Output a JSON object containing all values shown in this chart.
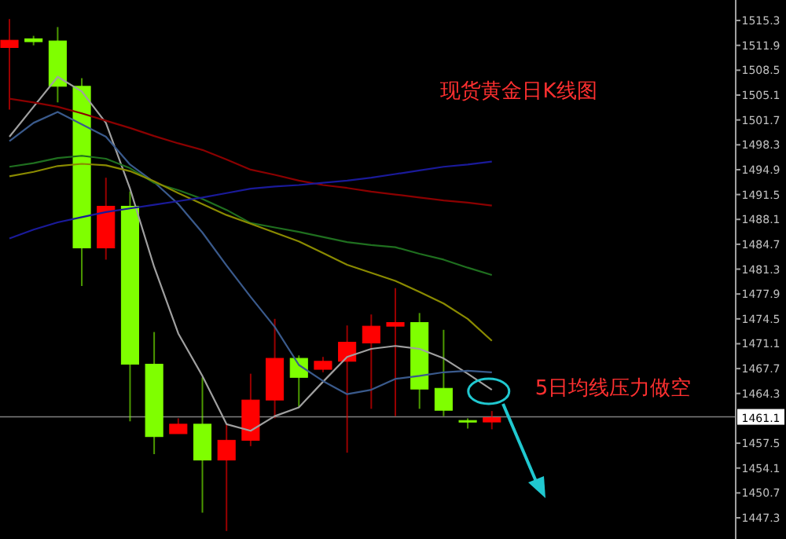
{
  "chart_data": {
    "type": "candlestick",
    "title": "现货黄金日K线图",
    "annotations": [
      "5日均线压力做空"
    ],
    "categories": [
      null,
      null,
      null,
      null,
      null,
      null,
      null,
      null,
      null,
      null,
      null,
      null,
      null,
      null,
      null,
      null,
      null,
      null,
      null,
      null,
      null
    ],
    "ohlc": [
      [
        1511.6,
        1515.5,
        1503.1,
        1512.6
      ],
      [
        1512.8,
        1513.2,
        1511.9,
        1512.4
      ],
      [
        1512.5,
        1514.4,
        1504.1,
        1506.3
      ],
      [
        1506.3,
        1507.4,
        1479.0,
        1484.2
      ],
      [
        1484.2,
        1493.8,
        1482.6,
        1489.9
      ],
      [
        1489.9,
        1491.9,
        1460.5,
        1468.3
      ],
      [
        1468.3,
        1472.7,
        1456.0,
        1458.4
      ],
      [
        1458.8,
        1460.9,
        1458.8,
        1460.1
      ],
      [
        1460.1,
        1466.5,
        1448.0,
        1455.2
      ],
      [
        1455.2,
        1460.1,
        1445.5,
        1457.9
      ],
      [
        1457.9,
        1467.0,
        1457.1,
        1463.4
      ],
      [
        1463.4,
        1474.5,
        1460.9,
        1469.1
      ],
      [
        1469.1,
        1469.5,
        1462.4,
        1466.5
      ],
      [
        1467.6,
        1469.3,
        1467.2,
        1468.7
      ],
      [
        1468.7,
        1473.6,
        1456.2,
        1471.3
      ],
      [
        1471.2,
        1475.1,
        1462.2,
        1473.5
      ],
      [
        1473.5,
        1478.7,
        1461.2,
        1474.0
      ],
      [
        1474.0,
        1475.3,
        1462.2,
        1464.9
      ],
      [
        1465.0,
        1473.0,
        1461.2,
        1462.0
      ],
      [
        1460.6,
        1460.9,
        1459.5,
        1460.6
      ],
      [
        1460.4,
        1461.9,
        1459.4,
        1461.0
      ]
    ],
    "colors": [
      "#ff0000",
      "#7fff00",
      "#7fff00",
      "#7fff00",
      "#ff0000",
      "#7fff00",
      "#7fff00",
      "#ff0000",
      "#7fff00",
      "#ff0000",
      "#ff0000",
      "#ff0000",
      "#7fff00",
      "#ff0000",
      "#ff0000",
      "#ff0000",
      "#ff0000",
      "#7fff00",
      "#7fff00",
      "#7fff00",
      "#ff0000"
    ],
    "series": [
      {
        "type": "line",
        "color": "#a0a0a0",
        "values": [
          1499.4,
          1503.5,
          1507.6,
          1505.6,
          1501.3,
          1492.3,
          1481.6,
          1472.5,
          1466.7,
          1460.1,
          1459.2,
          1461.2,
          1462.4,
          1465.9,
          1469.3,
          1470.4,
          1470.8,
          1470.4,
          1469.1,
          1467.0,
          1464.8
        ]
      },
      {
        "type": "line",
        "color": "#3a5a8c",
        "values": [
          1498.8,
          1501.3,
          1502.8,
          1501.1,
          1499.4,
          1495.6,
          1493.2,
          1490.2,
          1486.3,
          1481.8,
          1477.5,
          1473.4,
          1468.2,
          1466.0,
          1464.2,
          1464.8,
          1466.3,
          1466.7,
          1467.2,
          1467.4,
          1467.2
        ]
      },
      {
        "type": "line",
        "color": "#1f6f1f",
        "values": [
          1495.3,
          1495.8,
          1496.5,
          1496.8,
          1496.4,
          1495.1,
          1493.1,
          1492.1,
          1490.9,
          1489.4,
          1487.6,
          1487.0,
          1486.4,
          1485.7,
          1485.0,
          1484.6,
          1484.3,
          1483.4,
          1482.6,
          1481.5,
          1480.5
        ]
      },
      {
        "type": "line",
        "color": "#8a8a00",
        "values": [
          1494.0,
          1494.6,
          1495.4,
          1495.7,
          1495.5,
          1494.7,
          1493.3,
          1491.7,
          1490.2,
          1488.7,
          1487.5,
          1486.3,
          1485.1,
          1483.5,
          1481.9,
          1480.8,
          1479.7,
          1478.2,
          1476.6,
          1474.5,
          1471.5
        ]
      },
      {
        "type": "line",
        "color": "#8b0000",
        "values": [
          1504.6,
          1504.1,
          1503.5,
          1502.6,
          1501.6,
          1500.6,
          1499.5,
          1498.5,
          1497.6,
          1496.3,
          1494.9,
          1494.2,
          1493.4,
          1492.8,
          1492.4,
          1491.9,
          1491.5,
          1491.1,
          1490.7,
          1490.4,
          1490.0
        ]
      },
      {
        "type": "line",
        "color": "#1a1a9a",
        "values": [
          1485.5,
          1486.7,
          1487.7,
          1488.4,
          1489.1,
          1489.6,
          1490.1,
          1490.6,
          1491.1,
          1491.7,
          1492.3,
          1492.6,
          1492.8,
          1493.1,
          1493.4,
          1493.8,
          1494.3,
          1494.8,
          1495.3,
          1495.6,
          1496.0
        ]
      }
    ],
    "ylim": [
      1444.4,
      1518.1
    ],
    "yticks": [
      {
        "value": 1447.3,
        "label": "1447.3"
      },
      {
        "value": 1450.7,
        "label": "1450.7"
      },
      {
        "value": 1454.1,
        "label": "1454.1"
      },
      {
        "value": 1457.5,
        "label": "1457.5"
      },
      {
        "value": 1464.3,
        "label": "1464.3"
      },
      {
        "value": 1467.7,
        "label": "1467.7"
      },
      {
        "value": 1471.1,
        "label": "1471.1"
      },
      {
        "value": 1474.5,
        "label": "1474.5"
      },
      {
        "value": 1477.9,
        "label": "1477.9"
      },
      {
        "value": 1481.3,
        "label": "1481.3"
      },
      {
        "value": 1484.7,
        "label": "1484.7"
      },
      {
        "value": 1488.1,
        "label": "1488.1"
      },
      {
        "value": 1491.5,
        "label": "1491.5"
      },
      {
        "value": 1494.9,
        "label": "1494.9"
      },
      {
        "value": 1498.3,
        "label": "1498.3"
      },
      {
        "value": 1501.7,
        "label": "1501.7"
      },
      {
        "value": 1505.1,
        "label": "1505.1"
      },
      {
        "value": 1508.5,
        "label": "1508.5"
      },
      {
        "value": 1511.9,
        "label": "1511.9"
      },
      {
        "value": 1515.3,
        "label": "1515.3"
      }
    ],
    "ref_lines": [
      {
        "axis": "y",
        "value": 1461.1,
        "label": "1461.1",
        "color": "#808080"
      }
    ],
    "tick_labels": "y",
    "grid": false
  }
}
